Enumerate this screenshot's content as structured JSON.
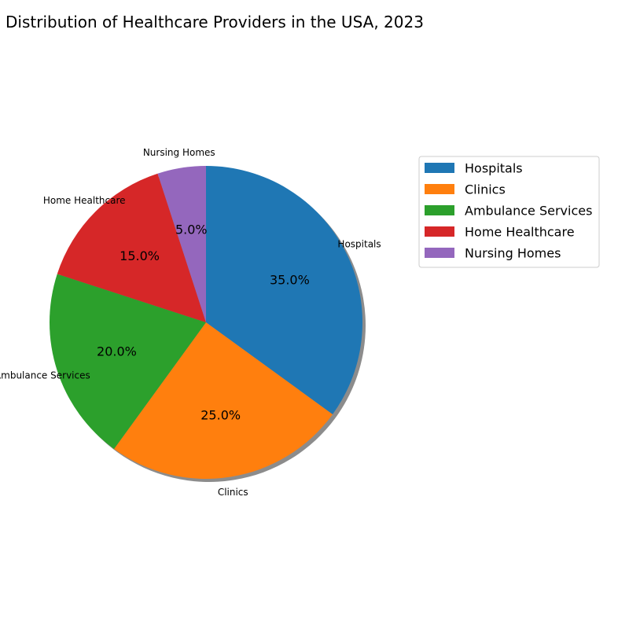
{
  "chart_data": {
    "type": "pie",
    "title": "Distribution of Healthcare Providers in the USA, 2023",
    "categories": [
      "Hospitals",
      "Clinics",
      "Ambulance Services",
      "Home Healthcare",
      "Nursing Homes"
    ],
    "values": [
      35,
      25,
      20,
      15,
      5
    ],
    "percent_labels": [
      "35.0%",
      "25.0%",
      "20.0%",
      "15.0%",
      "5.0%"
    ],
    "colors": [
      "#1f77b4",
      "#ff7f0e",
      "#2ca02c",
      "#d62728",
      "#9467bd"
    ],
    "start_angle": 90,
    "direction": "clockwise",
    "shadow": true,
    "legend": {
      "entries": [
        "Hospitals",
        "Clinics",
        "Ambulance Services",
        "Home Healthcare",
        "Nursing Homes"
      ],
      "placement": "right"
    }
  }
}
